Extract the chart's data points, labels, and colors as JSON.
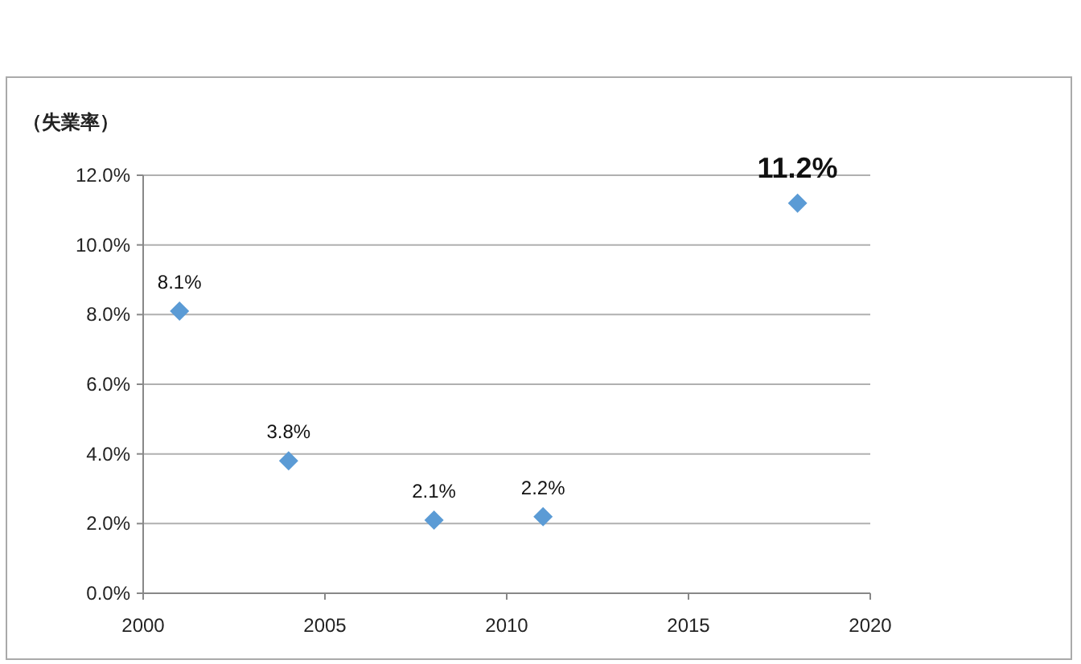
{
  "chart_data": {
    "type": "scatter",
    "ylabel": "（失業率）",
    "x": [
      2001,
      2004,
      2008,
      2011,
      2018
    ],
    "values": [
      8.1,
      3.8,
      2.1,
      2.2,
      11.2
    ],
    "value_labels": [
      "8.1%",
      "3.8%",
      "2.1%",
      "2.2%",
      "11.2%"
    ],
    "color": "#5b9bd5",
    "marker": "diamond",
    "xlim": [
      2000,
      2020
    ],
    "xticks": [
      2000,
      2005,
      2010,
      2015,
      2020
    ],
    "ylim": [
      0,
      12
    ],
    "yticks": [
      {
        "value": 0,
        "label": "0.0%"
      },
      {
        "value": 2,
        "label": "2.0%"
      },
      {
        "value": 4,
        "label": "4.0%"
      },
      {
        "value": 6,
        "label": "6.0%"
      },
      {
        "value": 8,
        "label": "8.0%"
      },
      {
        "value": 10,
        "label": "10.0%"
      },
      {
        "value": 12,
        "label": "12.0%"
      }
    ],
    "grid": "y"
  }
}
